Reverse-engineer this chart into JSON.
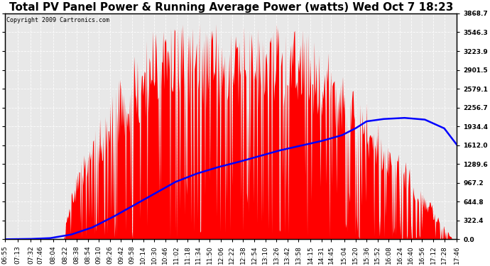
{
  "title": "Total PV Panel Power & Running Average Power (watts) Wed Oct 7 18:23",
  "copyright": "Copyright 2009 Cartronics.com",
  "bar_color": "#FF0000",
  "avg_color": "#0000FF",
  "ymax": 3868.7,
  "ymin": 0.0,
  "yticks": [
    0.0,
    322.4,
    644.8,
    967.2,
    1289.6,
    1612.0,
    1934.4,
    2256.7,
    2579.1,
    2901.5,
    3223.9,
    3546.3,
    3868.7
  ],
  "ytick_labels": [
    "0.0",
    "322.4",
    "644.8",
    "967.2",
    "1289.6",
    "1612.0",
    "1934.4",
    "2256.7",
    "2579.1",
    "2901.5",
    "3223.9",
    "3546.3",
    "3868.7"
  ],
  "xtick_labels": [
    "06:55",
    "07:13",
    "07:32",
    "07:46",
    "08:04",
    "08:22",
    "08:38",
    "08:54",
    "09:10",
    "09:26",
    "09:42",
    "09:58",
    "10:14",
    "10:30",
    "10:46",
    "11:02",
    "11:18",
    "11:34",
    "11:50",
    "12:06",
    "12:22",
    "12:38",
    "12:54",
    "13:10",
    "13:26",
    "13:42",
    "13:58",
    "14:15",
    "14:31",
    "14:45",
    "15:04",
    "15:20",
    "15:36",
    "15:52",
    "16:08",
    "16:24",
    "16:40",
    "16:56",
    "17:12",
    "17:28",
    "17:46"
  ],
  "title_fontsize": 11,
  "axis_fontsize": 6.5,
  "copyright_fontsize": 6
}
